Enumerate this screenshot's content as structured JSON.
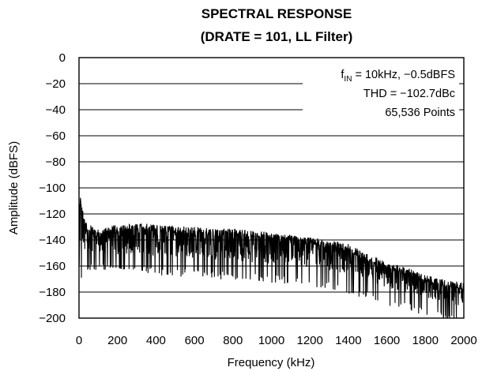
{
  "chart_data": {
    "type": "line",
    "title": "SPECTRAL RESPONSE",
    "subtitle": "(DRATE = 101, LL Filter)",
    "xlabel": "Frequency (kHz)",
    "ylabel": "Amplitude (dBFS)",
    "xlim": [
      0,
      2000
    ],
    "ylim": [
      -200,
      0
    ],
    "xticks": [
      0,
      200,
      400,
      600,
      800,
      1000,
      1200,
      1400,
      1600,
      1800,
      2000
    ],
    "yticks": [
      0,
      -20,
      -40,
      -60,
      -80,
      -100,
      -120,
      -140,
      -160,
      -180,
      -200
    ],
    "ytick_labels": [
      "0",
      "−20",
      "−40",
      "−60",
      "−80",
      "−100",
      "−120",
      "−140",
      "−160",
      "−180",
      "−200"
    ],
    "grid": "horizontal",
    "series_color": "#000000",
    "annotations": {
      "line1_main": "f",
      "line1_sub": "IN",
      "line1_rest": " = 10kHz, −0.5dBFS",
      "line2": "THD = −102.7dBc",
      "line3": "65,536 Points"
    },
    "series": [
      {
        "values_description_free": true,
        "x": [
          0,
          5,
          10,
          20,
          30,
          50,
          100,
          200,
          300,
          400,
          500,
          600,
          700,
          800,
          900,
          1000,
          1100,
          1200,
          1300,
          1400,
          1500,
          1600,
          1700,
          1800,
          1900,
          2000
        ],
        "upper": [
          -128,
          -103,
          -110,
          -118,
          -124,
          -128,
          -132,
          -128,
          -127,
          -128,
          -129,
          -130,
          -131,
          -131,
          -133,
          -134,
          -136,
          -138,
          -140,
          -143,
          -151,
          -157,
          -161,
          -167,
          -170,
          -173
        ],
        "lower": [
          -155,
          -162,
          -165,
          -160,
          -158,
          -157,
          -158,
          -160,
          -160,
          -161,
          -162,
          -163,
          -164,
          -165,
          -166,
          -167,
          -168,
          -170,
          -172,
          -175,
          -180,
          -185,
          -188,
          -192,
          -196,
          -199
        ]
      }
    ]
  }
}
